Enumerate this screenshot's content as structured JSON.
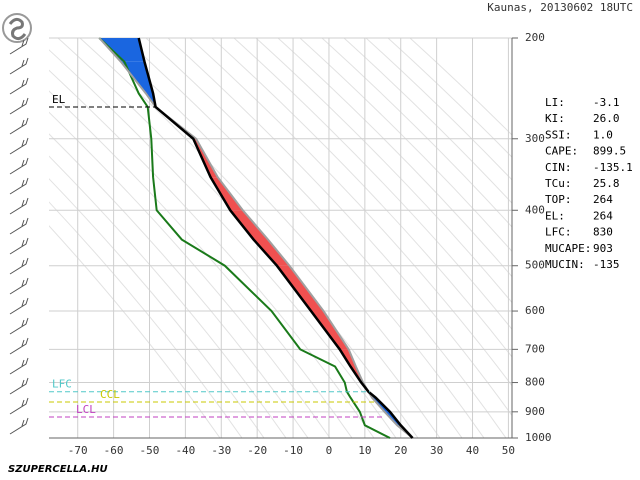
{
  "chart_data": {
    "type": "sounding",
    "title": "Kaunas, 20130602 18UTC",
    "footer": "SZUPERCELLA.HU",
    "pressure": [
      1000,
      950,
      900,
      850,
      830,
      800,
      750,
      700,
      600,
      500,
      450,
      400,
      350,
      300,
      264,
      250,
      220,
      200
    ],
    "series": [
      {
        "color": "#000000",
        "values": [
          23.3,
          20,
          17,
          13,
          11,
          9,
          6,
          3,
          -5,
          -14.5,
          -21,
          -27.5,
          -33,
          -37.8,
          -48.3,
          -49,
          -51.4,
          -53
        ]
      },
      {
        "color": "#1a7a1a",
        "values": [
          17,
          10,
          8.6,
          6,
          5,
          4.4,
          1.7,
          -8,
          -16,
          -29,
          -41,
          -48,
          -49,
          -49.5,
          -50.5,
          -53,
          -57,
          -64
        ]
      },
      {
        "color": "#a0a0a0",
        "values": [
          23.3,
          19,
          15.5,
          12,
          11,
          9.5,
          7.5,
          5.5,
          -1.5,
          -11,
          -17,
          -24,
          -31,
          -37,
          -48.3,
          -51,
          -58,
          -64
        ]
      }
    ],
    "cape_color": "#f05050",
    "cin_color": "#1a66e0",
    "xlim": [
      -78,
      51
    ],
    "xticks": [
      -70,
      -60,
      -50,
      -40,
      -30,
      -20,
      -10,
      0,
      10,
      20,
      30,
      40,
      50
    ],
    "ylim": [
      1000,
      200
    ],
    "yticks": [
      200,
      300,
      400,
      500,
      600,
      700,
      800,
      900,
      1000
    ],
    "ylog": true,
    "grid": true,
    "levels": [
      {
        "label": "EL",
        "pressure": 264,
        "color": "#000000"
      },
      {
        "label": "LFC",
        "pressure": 830,
        "color": "#50c8c8"
      },
      {
        "label": "CCL",
        "pressure": 865,
        "color": "#c8c800"
      },
      {
        "label": "LCL",
        "pressure": 919,
        "color": "#c040c0"
      }
    ],
    "indices": [
      {
        "label": "LI:",
        "value": -3.1
      },
      {
        "label": "KI:",
        "value": "26.0"
      },
      {
        "label": "SSI:",
        "value": "1.0"
      },
      {
        "label": "CAPE:",
        "value": 899.5
      },
      {
        "label": "CIN:",
        "value": -135.1
      },
      {
        "label": "TCu:",
        "value": 25.8
      },
      {
        "label": "TOP:",
        "value": 264
      },
      {
        "label": "EL:",
        "value": 264
      },
      {
        "label": "LFC:",
        "value": 830
      },
      {
        "label": "MUCAPE:",
        "value": 903
      },
      {
        "label": "MUCIN:",
        "value": -135
      }
    ]
  }
}
